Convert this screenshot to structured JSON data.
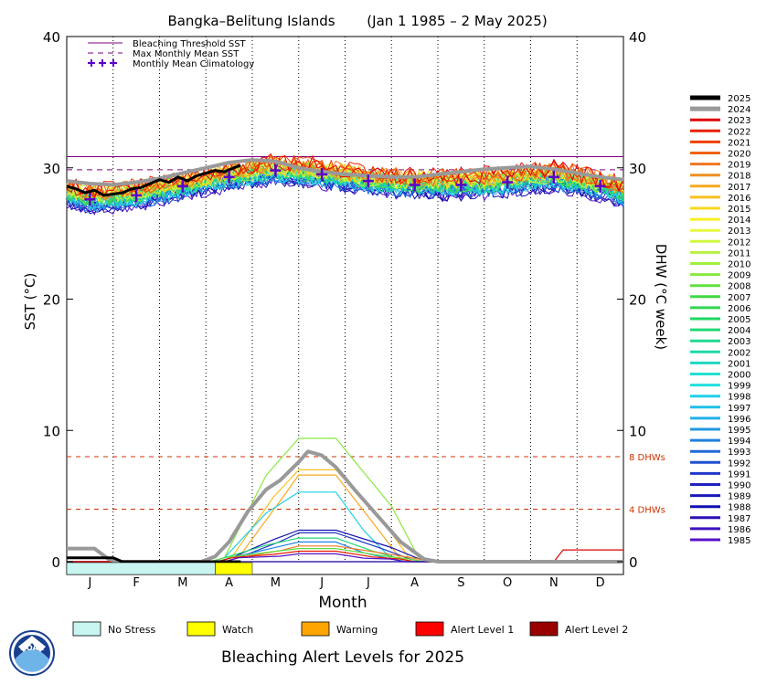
{
  "chart_data": {
    "type": "line",
    "title": "Bangka–Belitung Islands",
    "period": "(Jan 1 1985 – 2 May 2025)",
    "ylabel_left": "SST (°C)",
    "ylabel_right": "DHW (°C week)",
    "xlabel": "Month",
    "ylim": [
      0,
      40
    ],
    "yticks": [
      "0",
      "10",
      "20",
      "30",
      "40"
    ],
    "months": [
      "J",
      "F",
      "M",
      "A",
      "M",
      "J",
      "J",
      "A",
      "S",
      "O",
      "N",
      "D"
    ],
    "bleaching_threshold_sst": 30.85,
    "max_monthly_mean_sst": 29.85,
    "monthly_mean_climatology": [
      27.6,
      27.9,
      28.6,
      29.3,
      29.8,
      29.5,
      29.0,
      28.7,
      28.7,
      28.9,
      29.3,
      28.6
    ],
    "dhw_reference_lines": [
      {
        "value": 8,
        "label": "8 DHWs"
      },
      {
        "value": 4,
        "label": "4 DHWs"
      }
    ],
    "legend_top": [
      {
        "label": "Bleaching Threshold SST",
        "color": "#800080",
        "style": "solid"
      },
      {
        "label": "Max Monthly Mean SST",
        "color": "#800080",
        "style": "dashed"
      },
      {
        "label": "Monthly Mean Climatology",
        "color": "#5a00c8",
        "style": "plus"
      }
    ],
    "years": [
      {
        "year": "2025",
        "color": "#000000"
      },
      {
        "year": "2024",
        "color": "#999999"
      },
      {
        "year": "2023",
        "color": "#e00000"
      },
      {
        "year": "2022",
        "color": "#e82000"
      },
      {
        "year": "2021",
        "color": "#f04000"
      },
      {
        "year": "2020",
        "color": "#f06010"
      },
      {
        "year": "2019",
        "color": "#f07820"
      },
      {
        "year": "2018",
        "color": "#f09020"
      },
      {
        "year": "2017",
        "color": "#f8a820"
      },
      {
        "year": "2016",
        "color": "#f8c020"
      },
      {
        "year": "2015",
        "color": "#f8d820"
      },
      {
        "year": "2014",
        "color": "#f8f020"
      },
      {
        "year": "2013",
        "color": "#e8f840"
      },
      {
        "year": "2012",
        "color": "#d0f840"
      },
      {
        "year": "2011",
        "color": "#b8f040"
      },
      {
        "year": "2010",
        "color": "#a0f040"
      },
      {
        "year": "2009",
        "color": "#88e840"
      },
      {
        "year": "2008",
        "color": "#60e040"
      },
      {
        "year": "2007",
        "color": "#40d840"
      },
      {
        "year": "2006",
        "color": "#30d850"
      },
      {
        "year": "2005",
        "color": "#20d860"
      },
      {
        "year": "2004",
        "color": "#20d878"
      },
      {
        "year": "2003",
        "color": "#20d890"
      },
      {
        "year": "2002",
        "color": "#20d8a8"
      },
      {
        "year": "2001",
        "color": "#20d8c0"
      },
      {
        "year": "2000",
        "color": "#20e0d0"
      },
      {
        "year": "1999",
        "color": "#20e0e0"
      },
      {
        "year": "1998",
        "color": "#20d0e8"
      },
      {
        "year": "1997",
        "color": "#20c0e8"
      },
      {
        "year": "1996",
        "color": "#20b0e8"
      },
      {
        "year": "1995",
        "color": "#2098e0"
      },
      {
        "year": "1994",
        "color": "#2080e0"
      },
      {
        "year": "1993",
        "color": "#2068d8"
      },
      {
        "year": "1992",
        "color": "#2050d0"
      },
      {
        "year": "1991",
        "color": "#2038c8"
      },
      {
        "year": "1990",
        "color": "#2020c0"
      },
      {
        "year": "1989",
        "color": "#1818b8"
      },
      {
        "year": "1988",
        "color": "#1010b0"
      },
      {
        "year": "1987",
        "color": "#2810b8"
      },
      {
        "year": "1986",
        "color": "#4010c0"
      },
      {
        "year": "1985",
        "color": "#5810c8"
      }
    ],
    "sst_2025": [
      [
        0,
        28.6
      ],
      [
        0.2,
        28.4
      ],
      [
        0.4,
        28.1
      ],
      [
        0.6,
        28.3
      ],
      [
        0.8,
        27.9
      ],
      [
        1.0,
        28.0
      ],
      [
        1.2,
        28.1
      ],
      [
        1.4,
        28.4
      ],
      [
        1.6,
        28.5
      ],
      [
        1.8,
        28.8
      ],
      [
        2.0,
        29.1
      ],
      [
        2.2,
        28.9
      ],
      [
        2.4,
        29.3
      ],
      [
        2.6,
        29.0
      ],
      [
        2.8,
        29.4
      ],
      [
        3.0,
        29.6
      ],
      [
        3.2,
        29.8
      ],
      [
        3.4,
        29.7
      ],
      [
        3.6,
        30.0
      ],
      [
        3.75,
        30.2
      ]
    ],
    "sst_2024": [
      [
        0,
        29.0
      ],
      [
        0.5,
        28.8
      ],
      [
        1.0,
        28.7
      ],
      [
        1.5,
        28.9
      ],
      [
        2.0,
        29.2
      ],
      [
        2.5,
        29.6
      ],
      [
        3.0,
        30.0
      ],
      [
        3.5,
        30.4
      ],
      [
        4.0,
        30.6
      ],
      [
        4.5,
        30.5
      ],
      [
        5.0,
        30.0
      ],
      [
        5.5,
        29.7
      ],
      [
        6.0,
        29.5
      ],
      [
        6.5,
        29.4
      ],
      [
        7.0,
        29.3
      ],
      [
        7.5,
        29.3
      ],
      [
        8.0,
        29.5
      ],
      [
        8.5,
        29.7
      ],
      [
        9.0,
        29.9
      ],
      [
        9.5,
        30.0
      ],
      [
        10.0,
        30.1
      ],
      [
        10.5,
        29.9
      ],
      [
        11.0,
        29.6
      ],
      [
        11.5,
        29.3
      ],
      [
        12.0,
        29.1
      ]
    ],
    "dhw_2024": [
      [
        0,
        1.0
      ],
      [
        0.6,
        1.0
      ],
      [
        0.9,
        0.2
      ],
      [
        1.1,
        0
      ],
      [
        2.9,
        0
      ],
      [
        3.2,
        0.4
      ],
      [
        3.5,
        1.5
      ],
      [
        3.9,
        3.8
      ],
      [
        4.3,
        5.5
      ],
      [
        4.6,
        6.2
      ],
      [
        5.0,
        7.6
      ],
      [
        5.2,
        8.4
      ],
      [
        5.5,
        8.1
      ],
      [
        5.8,
        7.2
      ],
      [
        6.2,
        5.5
      ],
      [
        6.7,
        3.5
      ],
      [
        7.2,
        1.5
      ],
      [
        7.7,
        0.2
      ],
      [
        8.0,
        0
      ],
      [
        12.0,
        0
      ]
    ],
    "dhw_2025": [
      [
        0,
        0.3
      ],
      [
        1.0,
        0.3
      ],
      [
        1.2,
        0
      ],
      [
        3.75,
        0
      ]
    ],
    "bottom_bar_2025": [
      {
        "level": "No Stress",
        "start_month": 0,
        "end_month": 3.2
      },
      {
        "level": "Watch",
        "start_month": 3.2,
        "end_month": 4.0
      }
    ],
    "alert_legend_title": "Bleaching Alert Levels for 2025",
    "alert_levels": [
      {
        "label": "No Stress",
        "color": "#c8f5f0"
      },
      {
        "label": "Watch",
        "color": "#ffff00"
      },
      {
        "label": "Warning",
        "color": "#ffa500"
      },
      {
        "label": "Alert Level 1",
        "color": "#ff0000"
      },
      {
        "label": "Alert Level 2",
        "color": "#990000"
      }
    ]
  },
  "logo_text": "NOAA"
}
